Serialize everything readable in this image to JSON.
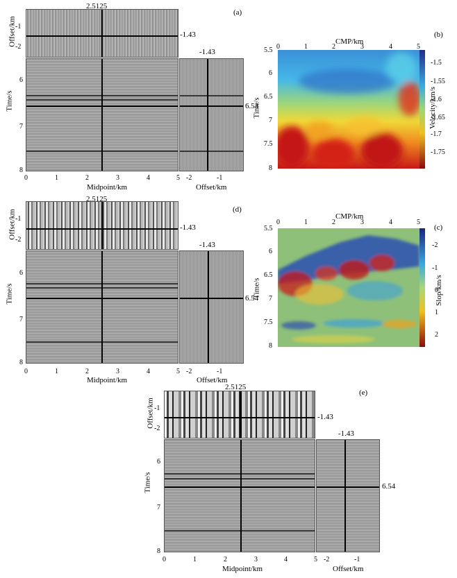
{
  "panel_a": {
    "tag": "(a)",
    "midpoint": "2.5125",
    "line_offset": "-1.43",
    "line_time": "6.54",
    "offset_label": "Offset/km",
    "time_label": "Time/s",
    "midpoint_label": "Midpoint/km",
    "offset_x_label": "Offset/km"
  },
  "panel_b": {
    "tag": "(b)",
    "top_label": "CMP/km",
    "ylabel": "Time/s",
    "colorbar_label": "Velocity/km/s"
  },
  "panel_c": {
    "tag": "(c)",
    "top_label": "CMP/km",
    "ylabel": "Time/s",
    "colorbar_label": "Slop/km/s"
  },
  "panel_d": {
    "tag": "(d)",
    "midpoint": "2.5125",
    "line_offset": "-1.43",
    "line_time": "6.54",
    "offset_label": "Offset/km",
    "time_label": "Time/s",
    "midpoint_label": "Midpoint/km",
    "offset_x_label": "Offset/km"
  },
  "panel_e": {
    "tag": "(e)",
    "midpoint": "2.5125",
    "line_offset": "-1.43",
    "line_time": "6.54",
    "offset_label": "Offset/km",
    "time_label": "Time/s",
    "midpoint_label": "Midpoint/km",
    "offset_x_label": "Offset/km"
  },
  "ticks": {
    "offset": [
      "-1",
      "-2"
    ],
    "time": [
      "6",
      "7",
      "8"
    ],
    "midpoint": [
      "0",
      "1",
      "2",
      "3",
      "4",
      "5"
    ],
    "offset_x": [
      "-2",
      "-1"
    ],
    "cmp": [
      "0",
      "1",
      "2",
      "3",
      "4",
      "5"
    ],
    "time_map": [
      "5.5",
      "6",
      "6.5",
      "7",
      "7.5",
      "8"
    ],
    "velocity": [
      "-1.5",
      "-1.55",
      "-1.6",
      "-1.65",
      "-1.7",
      "-1.75"
    ],
    "slope": [
      "-2",
      "-1",
      "0",
      "1",
      "2"
    ]
  },
  "colors": {
    "velocity_low": "#2040a0",
    "velocity_mid": "#f0e020",
    "velocity_high": "#c01010",
    "slope_neg": "#202080",
    "slope_zero": "#8ec07a",
    "slope_pos": "#b01010"
  }
}
